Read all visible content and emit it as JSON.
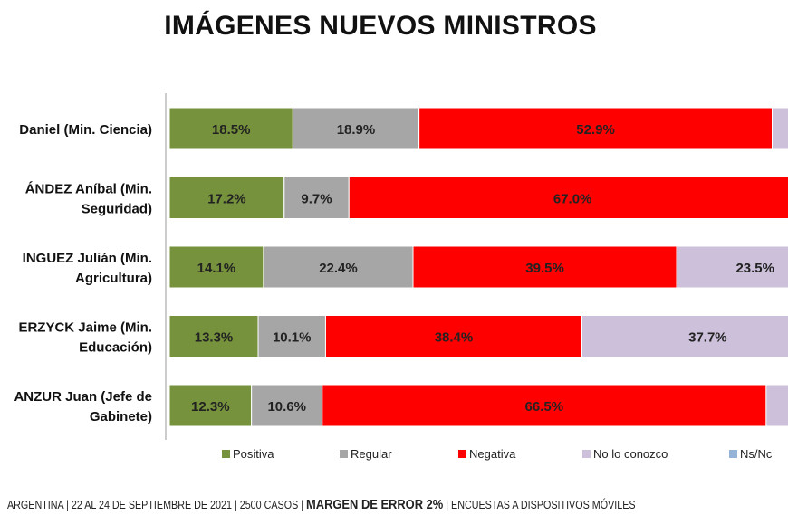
{
  "chart_data": {
    "type": "bar",
    "orientation": "horizontal",
    "stacked": true,
    "title": "IMÁGENES NUEVOS MINISTROS",
    "categories": [
      [
        "Daniel (Min. Ciencia)"
      ],
      [
        "ÁNDEZ Aníbal (Min.",
        "Seguridad)"
      ],
      [
        "INGUEZ Julián (Min.",
        "Agricultura)"
      ],
      [
        "ERZYCK Jaime (Min.",
        "Educación)"
      ],
      [
        "ANZUR Juan (Jefe de",
        "Gabinete)"
      ]
    ],
    "series": [
      {
        "name": "Positiva",
        "color": "#76923c",
        "values": [
          18.5,
          17.2,
          14.1,
          13.3,
          12.3
        ]
      },
      {
        "name": "Regular",
        "color": "#a6a6a6",
        "values": [
          18.9,
          9.7,
          22.4,
          10.1,
          10.6
        ]
      },
      {
        "name": "Negativa",
        "color": "#ff0000",
        "values": [
          52.9,
          67.0,
          39.5,
          38.4,
          66.5
        ]
      },
      {
        "name": "No lo conozco",
        "color": "#ccc0da",
        "values": [
          null,
          null,
          23.5,
          37.7,
          null
        ]
      },
      {
        "name": "Ns/Nc",
        "color": "#95b3d7",
        "values": [
          null,
          null,
          null,
          null,
          null
        ]
      }
    ],
    "value_format": "%",
    "xlim": [
      0,
      100
    ],
    "legend": "bottom"
  },
  "footer": {
    "part1": "ARGENTINA | 22 AL 24 DE SEPTIEMBRE DE 2021 | 2500 CASOS | ",
    "bold": "MARGEN DE ERROR 2%",
    "part2": " | ENCUESTAS A DISPOSITIVOS MÓVILES"
  }
}
